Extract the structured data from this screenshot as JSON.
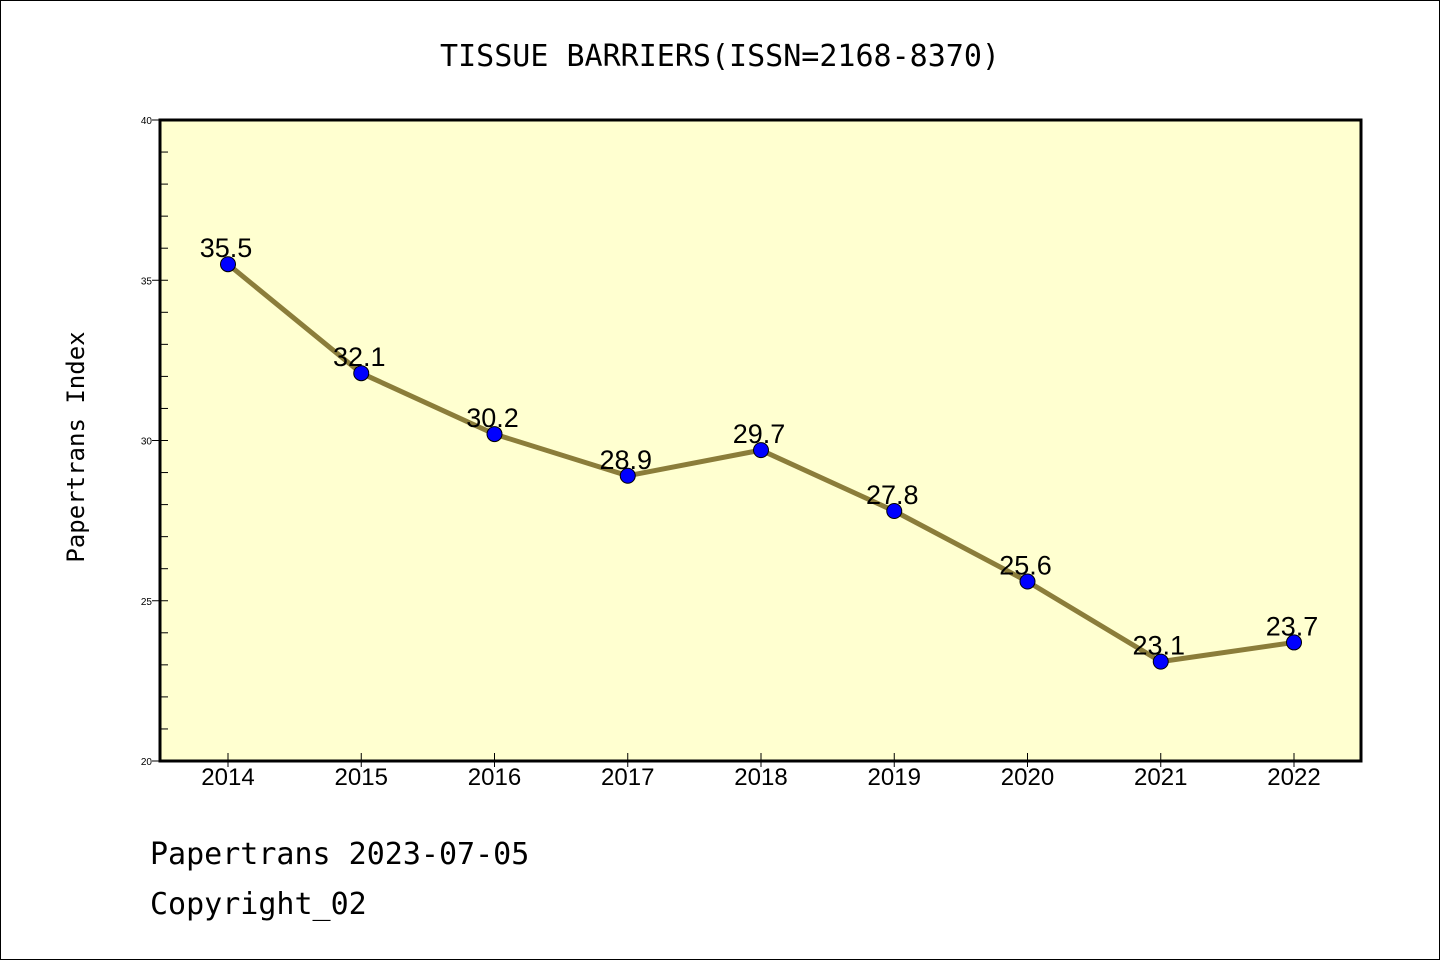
{
  "chart_data": {
    "type": "line",
    "title": "TISSUE BARRIERS(ISSN=2168-8370)",
    "xlabel": "",
    "ylabel": "Papertrans Index",
    "categories": [
      "2014",
      "2015",
      "2016",
      "2017",
      "2018",
      "2019",
      "2020",
      "2021",
      "2022"
    ],
    "values": [
      35.5,
      32.1,
      30.2,
      28.9,
      29.7,
      27.8,
      25.6,
      23.1,
      23.7
    ],
    "value_labels": [
      "35.5",
      "32.1",
      "30.2",
      "28.9",
      "29.7",
      "27.8",
      "25.6",
      "23.1",
      "23.7"
    ],
    "ylim": [
      20,
      40
    ],
    "yticks": [
      20,
      25,
      30,
      35,
      40
    ],
    "grid": false,
    "colors": {
      "plot_background": "#ffffd0",
      "line": "#8b7d3a",
      "marker": "#0000ff"
    }
  },
  "footer": {
    "line1": "Papertrans 2023-07-05",
    "line2": "Copyright_02"
  }
}
